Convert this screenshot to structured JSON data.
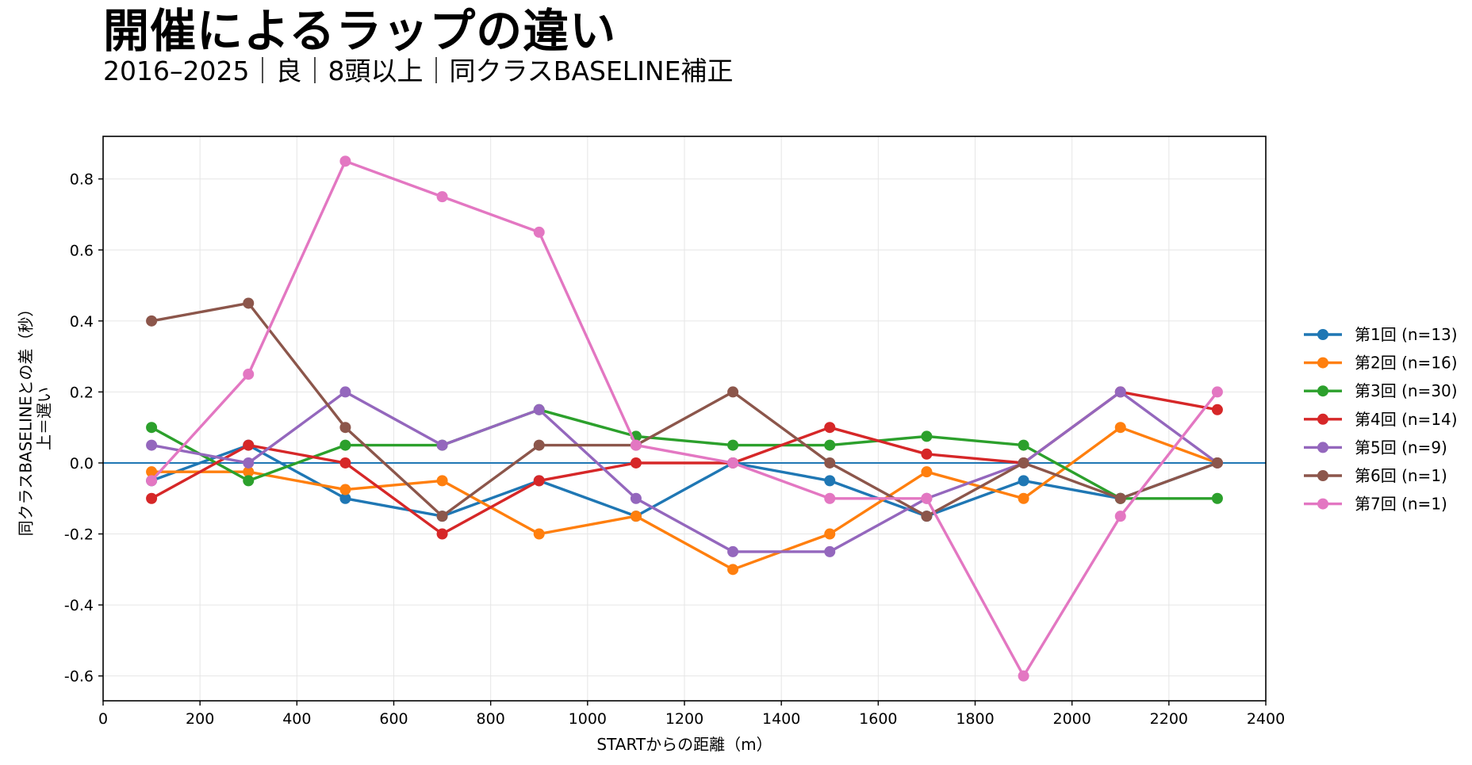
{
  "chart_data": {
    "type": "line",
    "title": "開催によるラップの違い",
    "subtitle": "2016–2025｜良｜8頭以上｜同クラスBASELINE補正",
    "xlabel": "STARTからの距離（m）",
    "ylabel": "同クラスBASELINEとの差（秒）",
    "ylabel2": "上＝遅い",
    "xlim": [
      0,
      2400
    ],
    "ylim": [
      -0.67,
      0.92
    ],
    "xticks": [
      0,
      200,
      400,
      600,
      800,
      1000,
      1200,
      1400,
      1600,
      1800,
      2000,
      2200,
      2400
    ],
    "xtick_labels": [
      "0",
      "200",
      "400",
      "600",
      "800",
      "1000",
      "1200",
      "1400",
      "1600",
      "1800",
      "2000",
      "2200",
      "2400"
    ],
    "yticks": [
      -0.6,
      -0.4,
      -0.2,
      0.0,
      0.2,
      0.4,
      0.6,
      0.8
    ],
    "ytick_labels": [
      "-0.6",
      "-0.4",
      "-0.2",
      "0.0",
      "0.2",
      "0.4",
      "0.6",
      "0.8"
    ],
    "grid": true,
    "legend_position": "right",
    "reference_line": {
      "y": 0.0,
      "color": "#1f77b4"
    },
    "x": [
      100,
      300,
      500,
      700,
      900,
      1100,
      1300,
      1500,
      1700,
      1900,
      2100,
      2300
    ],
    "series": [
      {
        "name": "第1回 (n=13)",
        "color": "#1f77b4",
        "values": [
          -0.05,
          0.05,
          -0.1,
          -0.15,
          -0.05,
          -0.15,
          0.0,
          -0.05,
          -0.15,
          -0.05,
          -0.1,
          0.0
        ]
      },
      {
        "name": "第2回 (n=16)",
        "color": "#ff7f0e",
        "values": [
          -0.025,
          -0.025,
          -0.075,
          -0.05,
          -0.2,
          -0.15,
          -0.3,
          -0.2,
          -0.025,
          -0.1,
          0.1,
          0.0
        ]
      },
      {
        "name": "第3回 (n=30)",
        "color": "#2ca02c",
        "values": [
          0.1,
          -0.05,
          0.05,
          0.05,
          0.15,
          0.075,
          0.05,
          0.05,
          0.075,
          0.05,
          -0.1,
          -0.1
        ]
      },
      {
        "name": "第4回 (n=14)",
        "color": "#d62728",
        "values": [
          -0.1,
          0.05,
          0.0,
          -0.2,
          -0.05,
          0.0,
          0.0,
          0.1,
          0.025,
          0.0,
          0.2,
          0.15
        ]
      },
      {
        "name": "第5回 (n=9)",
        "color": "#9467bd",
        "values": [
          0.05,
          0.0,
          0.2,
          0.05,
          0.15,
          -0.1,
          -0.25,
          -0.25,
          -0.1,
          0.0,
          0.2,
          0.0
        ]
      },
      {
        "name": "第6回 (n=1)",
        "color": "#8c564b",
        "values": [
          0.4,
          0.45,
          0.1,
          -0.15,
          0.05,
          0.05,
          0.2,
          0.0,
          -0.15,
          0.0,
          -0.1,
          0.0
        ]
      },
      {
        "name": "第7回 (n=1)",
        "color": "#e377c2",
        "values": [
          -0.05,
          0.25,
          0.85,
          0.75,
          0.65,
          0.05,
          0.0,
          -0.1,
          -0.1,
          -0.6,
          -0.15,
          0.2
        ]
      }
    ]
  }
}
